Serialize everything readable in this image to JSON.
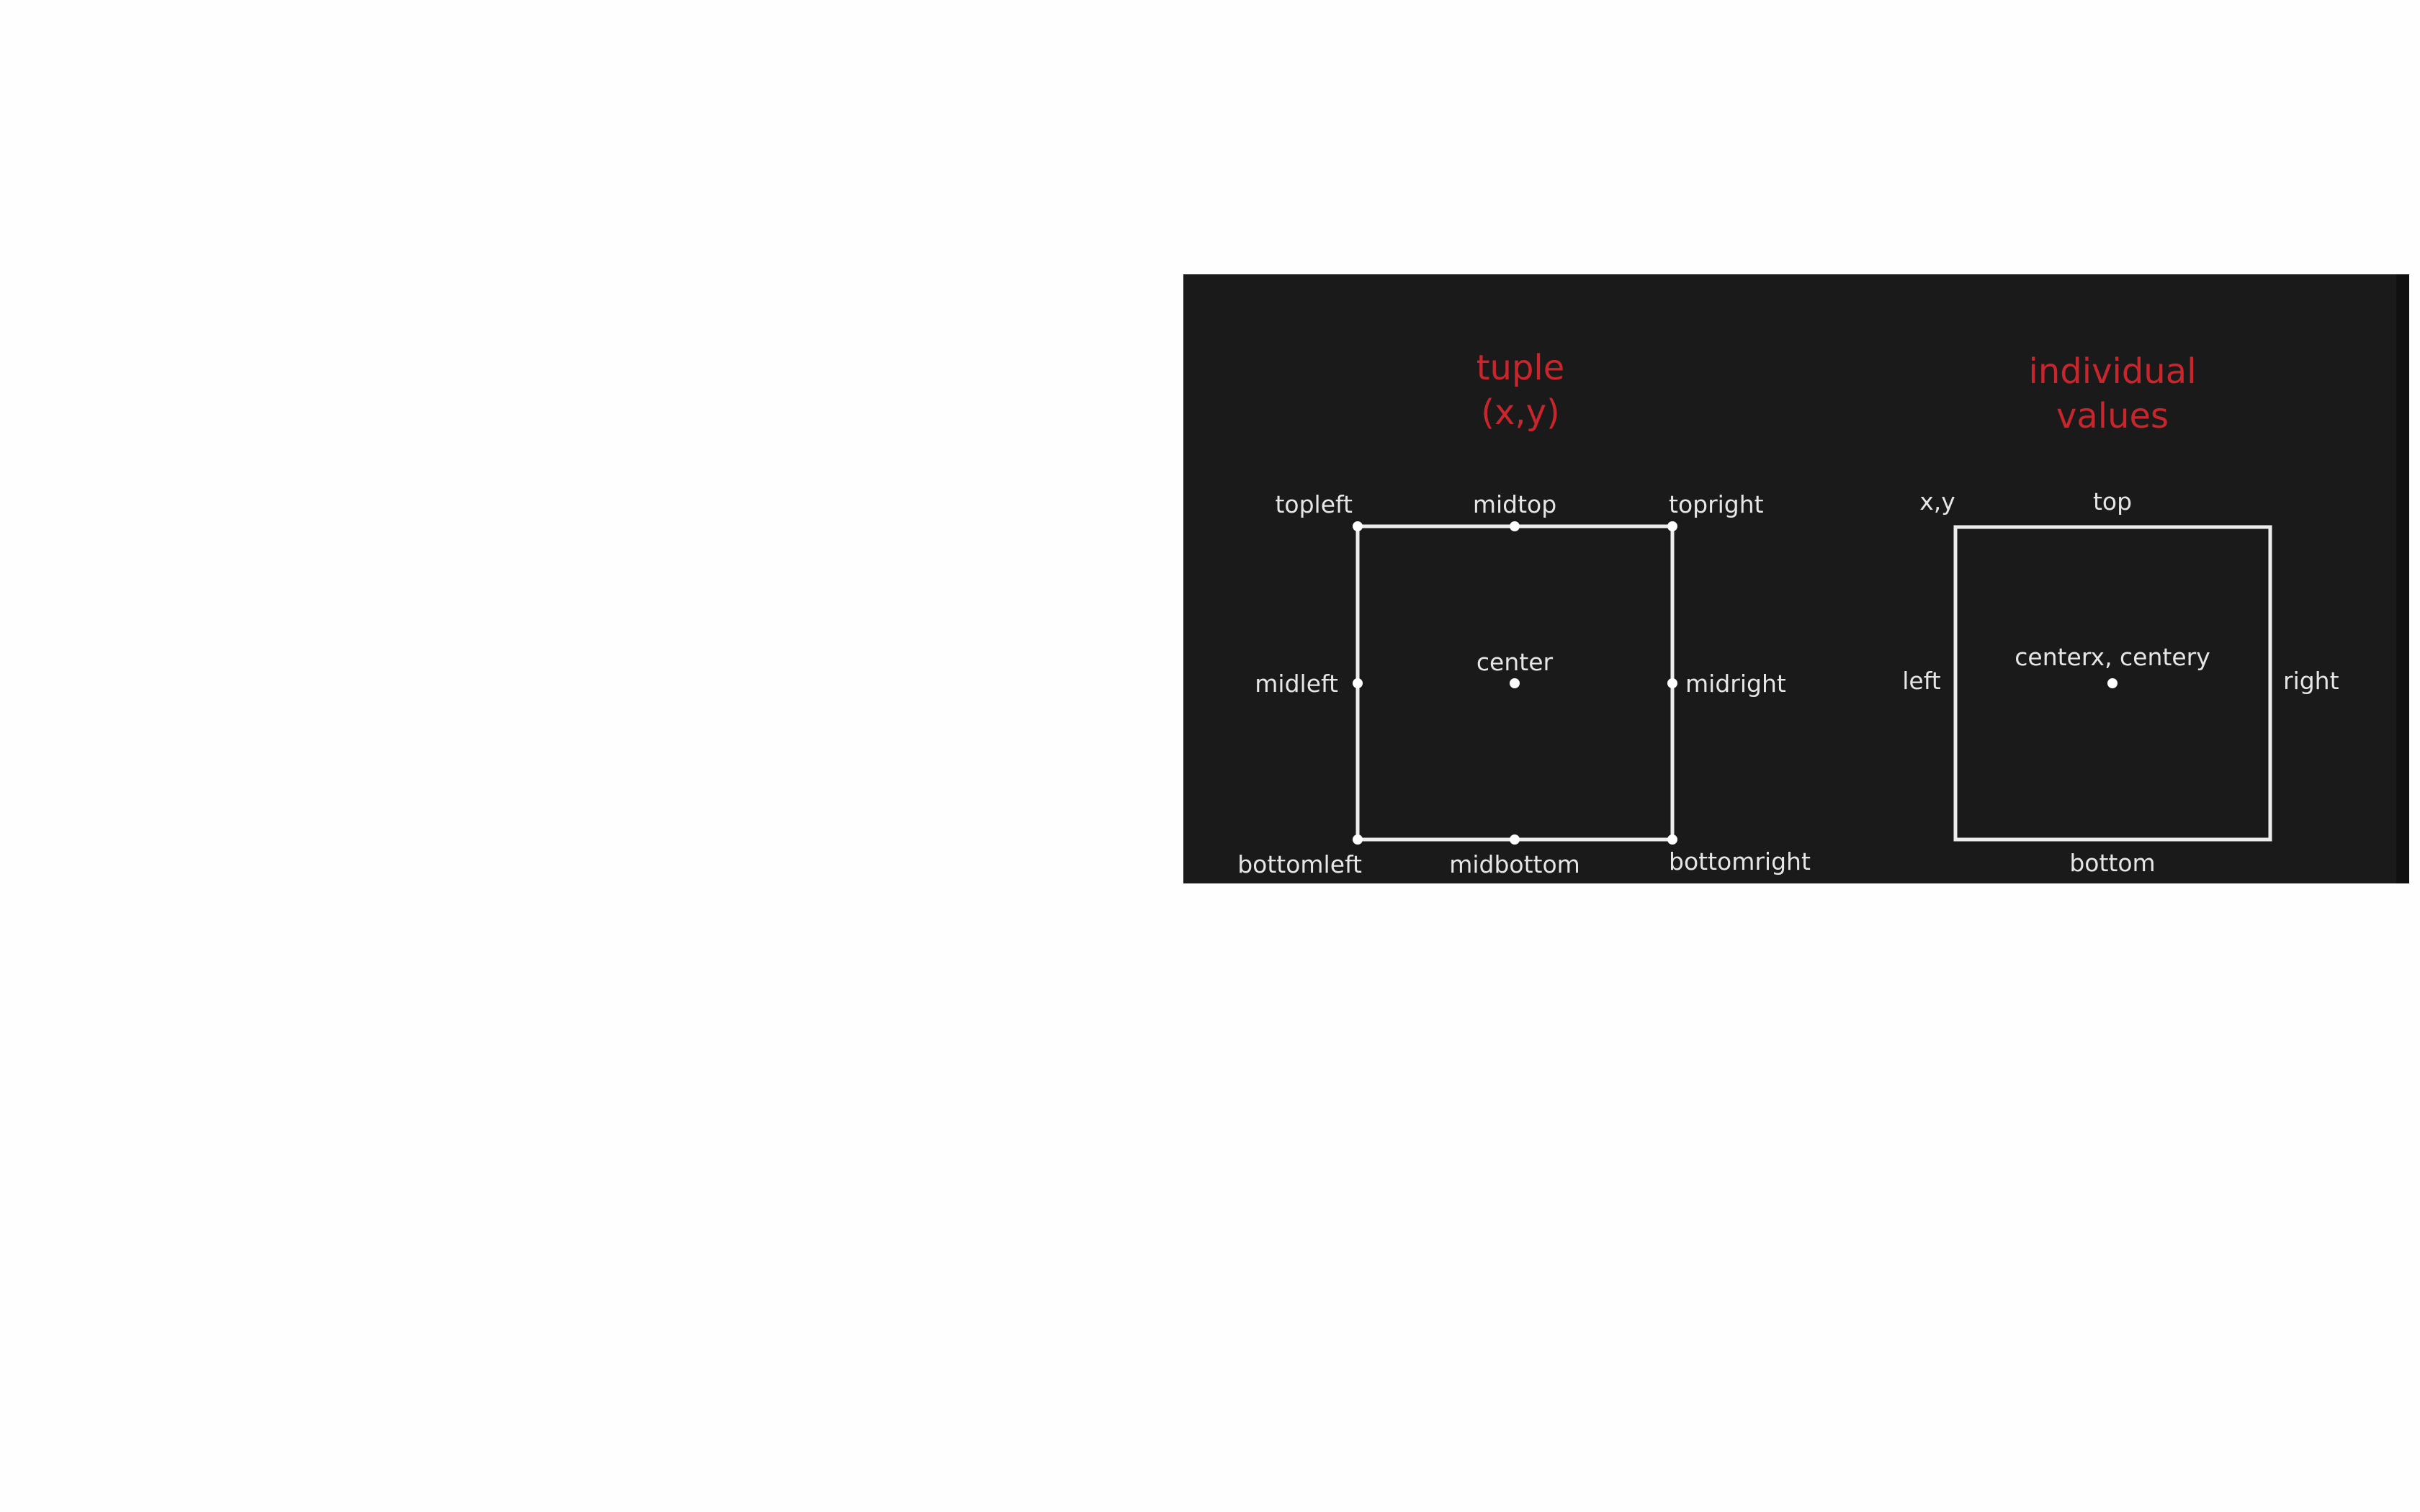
{
  "tuple_diagram": {
    "heading_line1": "tuple",
    "heading_line2": "(x,y)",
    "labels": {
      "topleft": "topleft",
      "midtop": "midtop",
      "topright": "topright",
      "midleft": "midleft",
      "center": "center",
      "midright": "midright",
      "bottomleft": "bottomleft",
      "midbottom": "midbottom",
      "bottomright": "bottomright"
    }
  },
  "individual_diagram": {
    "heading_line1": "individual",
    "heading_line2": "values",
    "labels": {
      "xy": "x,y",
      "top": "top",
      "left": "left",
      "center": "centerx, centery",
      "right": "right",
      "bottom": "bottom"
    }
  },
  "colors": {
    "panel_background": "#1a1a1a",
    "heading": "#c8262c",
    "label": "#e6e6e6",
    "outline": "#ededed"
  }
}
